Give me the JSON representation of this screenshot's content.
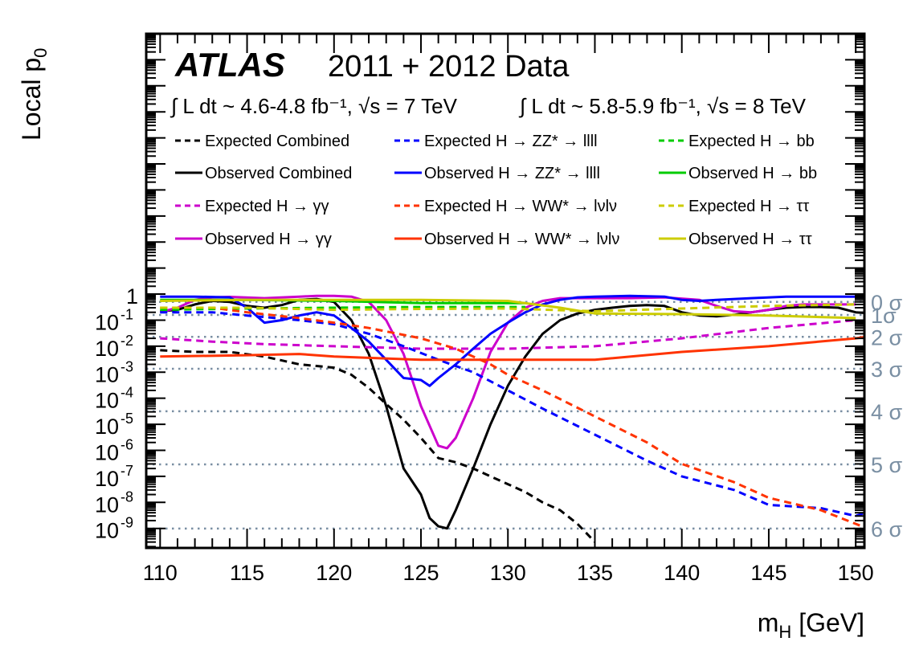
{
  "chart_data": {
    "type": "line",
    "title": "ATLAS 2011 + 2012 Data",
    "experiment": "ATLAS",
    "subtitle": "2011 + 2012 Data",
    "lumi_7tev": "∫ L dt ~ 4.6-4.8 fb⁻¹, √s = 7 TeV",
    "lumi_8tev": "∫ L dt ~ 5.8-5.9 fb⁻¹, √s = 8 TeV",
    "xlabel": "m_H [GeV]",
    "xlabel_main": "m",
    "xlabel_sub": "H",
    "xlabel_unit": " [GeV]",
    "ylabel": "Local p_0",
    "ylabel_main": "Local p",
    "ylabel_sub": "0",
    "xlim": [
      109.2,
      150.5
    ],
    "ylim_log10": [
      -9.75,
      10.0
    ],
    "y_scale": "log",
    "x_ticks": [
      110,
      115,
      120,
      125,
      130,
      135,
      140,
      145,
      150
    ],
    "y_tick_labels": [
      {
        "exp": 0,
        "base": "1",
        "sup": ""
      },
      {
        "exp": -1,
        "base": "10",
        "sup": "-1"
      },
      {
        "exp": -2,
        "base": "10",
        "sup": "-2"
      },
      {
        "exp": -3,
        "base": "10",
        "sup": "-3"
      },
      {
        "exp": -4,
        "base": "10",
        "sup": "-4"
      },
      {
        "exp": -5,
        "base": "10",
        "sup": "-5"
      },
      {
        "exp": -6,
        "base": "10",
        "sup": "-6"
      },
      {
        "exp": -7,
        "base": "10",
        "sup": "-7"
      },
      {
        "exp": -8,
        "base": "10",
        "sup": "-8"
      },
      {
        "exp": -9,
        "base": "10",
        "sup": "-9"
      }
    ],
    "sigma_lines": [
      {
        "label": "0 σ",
        "p": 0.5
      },
      {
        "label": "1σ",
        "p": 0.1587
      },
      {
        "label": "2 σ",
        "p": 0.02275
      },
      {
        "label": "3 σ",
        "p": 0.00135
      },
      {
        "label": "4 σ",
        "p": 3.17e-05
      },
      {
        "label": "5 σ",
        "p": 2.87e-07
      },
      {
        "label": "6 σ",
        "p": 9.87e-10
      }
    ],
    "sigma_color": "#7a8fa3",
    "legend_placement": "top",
    "series": [
      {
        "name": "Expected Combined",
        "color": "#000000",
        "dashed": true,
        "x": [
          110,
          112,
          114,
          116,
          118,
          120,
          121,
          122,
          123,
          124,
          125,
          126,
          127,
          128,
          129,
          130,
          131,
          132,
          133,
          134,
          135
        ],
        "y": [
          0.007,
          0.006,
          0.006,
          0.004,
          0.002,
          0.0015,
          0.0008,
          0.00025,
          6e-05,
          1.5e-05,
          3e-06,
          5e-07,
          3.5e-07,
          2e-07,
          1e-07,
          5e-08,
          2.5e-08,
          1e-08,
          5e-09,
          1.5e-09,
          3e-10
        ]
      },
      {
        "name": "Observed Combined",
        "color": "#000000",
        "dashed": false,
        "x": [
          110,
          111,
          112,
          113,
          114,
          115,
          116,
          117,
          118,
          119,
          120,
          121,
          122,
          123,
          124,
          125,
          125.5,
          126,
          126.5,
          127,
          128,
          129,
          130,
          131,
          132,
          133,
          134,
          135,
          136,
          137,
          138,
          139,
          140,
          141,
          142,
          143,
          144,
          145,
          146,
          147,
          148,
          149,
          150,
          151
        ],
        "y": [
          0.22,
          0.25,
          0.4,
          0.55,
          0.5,
          0.35,
          0.3,
          0.38,
          0.6,
          0.65,
          0.5,
          0.1,
          0.005,
          5e-05,
          2e-07,
          2e-08,
          2.5e-09,
          1.2e-09,
          1e-09,
          5e-09,
          2e-07,
          1e-05,
          0.0003,
          0.004,
          0.03,
          0.1,
          0.18,
          0.25,
          0.3,
          0.35,
          0.38,
          0.35,
          0.2,
          0.15,
          0.14,
          0.16,
          0.2,
          0.25,
          0.3,
          0.32,
          0.32,
          0.3,
          0.2,
          0.18
        ]
      },
      {
        "name": "Expected H → γγ",
        "color": "#cc00cc",
        "dashed": true,
        "x": [
          110,
          113,
          116,
          120,
          125,
          130,
          135,
          140,
          145,
          150
        ],
        "y": [
          0.02,
          0.015,
          0.012,
          0.01,
          0.008,
          0.008,
          0.01,
          0.02,
          0.05,
          0.1
        ]
      },
      {
        "name": "Observed H → γγ",
        "color": "#cc00cc",
        "dashed": false,
        "x": [
          110,
          111,
          112,
          113,
          114,
          116,
          118,
          119,
          120,
          121,
          122,
          123,
          124,
          125,
          126,
          126.5,
          127,
          128,
          129,
          130,
          131,
          132,
          133,
          135,
          137,
          139,
          141,
          142,
          143,
          144,
          145,
          146,
          147,
          148,
          149,
          150
        ],
        "y": [
          0.2,
          0.3,
          0.6,
          0.75,
          0.78,
          0.7,
          0.8,
          0.85,
          0.85,
          0.8,
          0.5,
          0.1,
          0.005,
          5e-05,
          1.5e-06,
          1.2e-06,
          3e-06,
          0.0001,
          0.006,
          0.08,
          0.3,
          0.55,
          0.7,
          0.7,
          0.7,
          0.75,
          0.6,
          0.35,
          0.22,
          0.2,
          0.25,
          0.35,
          0.4,
          0.4,
          0.4,
          0.4
        ]
      },
      {
        "name": "Expected H → ZZ* → llll",
        "color": "#0000ff",
        "dashed": true,
        "x": [
          110,
          113,
          115,
          118,
          120,
          122,
          124,
          126,
          128,
          130,
          132,
          135,
          138,
          140,
          143,
          145,
          148,
          150,
          151
        ],
        "y": [
          0.2,
          0.2,
          0.15,
          0.1,
          0.07,
          0.03,
          0.01,
          0.003,
          0.001,
          0.0002,
          4e-05,
          4e-06,
          4e-07,
          1e-07,
          3e-08,
          8e-09,
          6e-09,
          3e-09,
          5e-09
        ]
      },
      {
        "name": "Observed H → ZZ* → llll",
        "color": "#0000ff",
        "dashed": false,
        "x": [
          110,
          112,
          114,
          115,
          116,
          117,
          118,
          119,
          120,
          121,
          122,
          123,
          124,
          125,
          125.5,
          126,
          127,
          128,
          129,
          130,
          131,
          132,
          133,
          134,
          135,
          137,
          139,
          140,
          141,
          142,
          144,
          146,
          148,
          150,
          151
        ],
        "y": [
          0.8,
          0.8,
          0.75,
          0.3,
          0.08,
          0.1,
          0.15,
          0.2,
          0.15,
          0.05,
          0.015,
          0.003,
          0.0006,
          0.0005,
          0.0003,
          0.0006,
          0.002,
          0.008,
          0.03,
          0.08,
          0.2,
          0.4,
          0.6,
          0.75,
          0.8,
          0.85,
          0.8,
          0.6,
          0.55,
          0.6,
          0.7,
          0.8,
          0.8,
          0.8,
          0.7
        ]
      },
      {
        "name": "Expected H → bb",
        "color": "#00cc00",
        "dashed": true,
        "x": [
          110,
          115,
          120,
          125,
          130,
          131
        ],
        "y": [
          0.25,
          0.28,
          0.3,
          0.32,
          0.32,
          0.32
        ]
      },
      {
        "name": "Observed H → bb",
        "color": "#00cc00",
        "dashed": false,
        "x": [
          110,
          115,
          120,
          125,
          130,
          131
        ],
        "y": [
          0.6,
          0.6,
          0.55,
          0.45,
          0.45,
          0.45
        ]
      },
      {
        "name": "Expected H → WW* → lνlν",
        "color": "#ff3300",
        "dashed": true,
        "x": [
          110,
          113,
          115,
          118,
          120,
          122,
          125,
          127,
          129,
          130,
          132,
          135,
          138,
          140,
          143,
          145,
          148,
          150,
          151
        ],
        "y": [
          0.3,
          0.3,
          0.2,
          0.12,
          0.08,
          0.05,
          0.02,
          0.008,
          0.002,
          0.0008,
          0.0002,
          2e-05,
          2e-06,
          3e-07,
          6e-08,
          1.5e-08,
          5e-09,
          1.5e-09,
          8e-10
        ]
      },
      {
        "name": "Observed H → WW* → lνlν",
        "color": "#ff3300",
        "dashed": false,
        "x": [
          110,
          115,
          118,
          120,
          125,
          130,
          135,
          140,
          145,
          150,
          151
        ],
        "y": [
          0.004,
          0.0045,
          0.005,
          0.004,
          0.003,
          0.003,
          0.003,
          0.006,
          0.01,
          0.02,
          0.025
        ]
      },
      {
        "name": "Expected H → ττ",
        "color": "#cccc00",
        "dashed": true,
        "x": [
          110,
          115,
          120,
          125,
          130,
          135,
          140,
          145,
          150
        ],
        "y": [
          0.3,
          0.3,
          0.25,
          0.27,
          0.28,
          0.22,
          0.28,
          0.35,
          0.4
        ]
      },
      {
        "name": "Observed H → ττ",
        "color": "#cccc00",
        "dashed": false,
        "x": [
          110,
          115,
          120,
          125,
          130,
          133,
          135,
          140,
          145,
          150
        ],
        "y": [
          0.55,
          0.6,
          0.6,
          0.6,
          0.55,
          0.3,
          0.18,
          0.17,
          0.15,
          0.12
        ]
      }
    ]
  },
  "legend": {
    "columns": [
      [
        {
          "label": "Expected Combined",
          "series": 0
        },
        {
          "label": "Observed Combined",
          "series": 1
        },
        {
          "label": "Expected H → γγ",
          "series": 2
        },
        {
          "label": "Observed H → γγ",
          "series": 3
        }
      ],
      [
        {
          "label": "Expected H → ZZ* → llll",
          "series": 4
        },
        {
          "label": "Observed H → ZZ* → llll",
          "series": 5
        },
        {
          "label": "Expected H → WW* → lνlν",
          "series": 8
        },
        {
          "label": "Observed H → WW* → lνlν",
          "series": 9
        }
      ],
      [
        {
          "label": "Expected H → bb",
          "series": 6
        },
        {
          "label": "Observed H → bb",
          "series": 7
        },
        {
          "label": "Expected H → ττ",
          "series": 10
        },
        {
          "label": "Observed H → ττ",
          "series": 11
        }
      ]
    ]
  }
}
